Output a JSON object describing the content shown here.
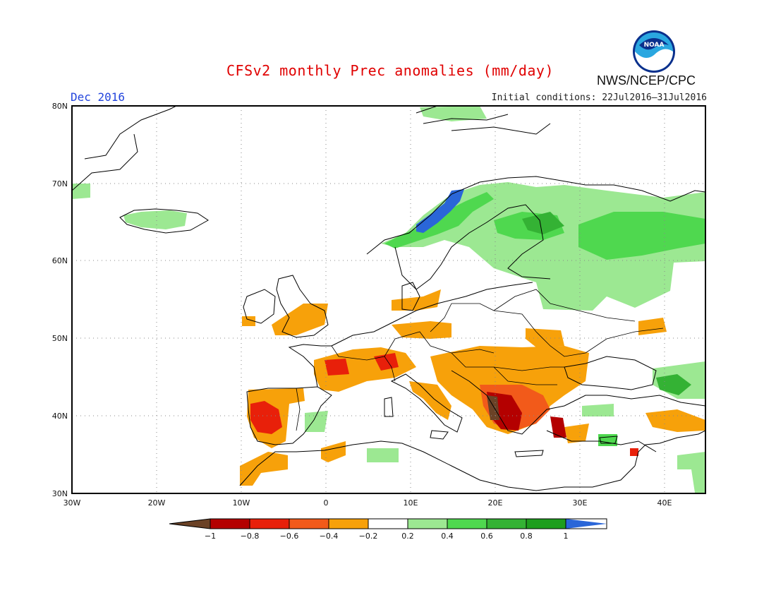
{
  "header": {
    "title": "CFSv2 monthly Prec anomalies (mm/day)",
    "month": "Dec 2016",
    "initial_conditions": "Initial conditions: 22Jul2016–31Jul2016",
    "agency": "NWS/NCEP/CPC",
    "logo_text": "NOAA"
  },
  "map": {
    "lon_range": [
      -30,
      45
    ],
    "lat_range": [
      30,
      80
    ],
    "lon_ticks": [
      "30W",
      "20W",
      "10W",
      "0",
      "10E",
      "20E",
      "30E",
      "40E"
    ],
    "lat_ticks": [
      "30N",
      "40N",
      "50N",
      "60N",
      "70N",
      "80N"
    ],
    "gridlines": "dotted"
  },
  "legend": {
    "labels": [
      "−1",
      "−0.8",
      "−0.6",
      "−0.4",
      "−0.2",
      "0.2",
      "0.4",
      "0.6",
      "0.8",
      "1"
    ],
    "colors": [
      "#6b4226",
      "#b40000",
      "#e8200a",
      "#f25a1a",
      "#f7a10a",
      "#ffffff",
      "#9ce892",
      "#4fd84f",
      "#34b234",
      "#1e9e1e",
      "#2a66d8"
    ]
  },
  "anomaly_colors": {
    "dry_1": "#f7a10a",
    "dry_2": "#f25a1a",
    "dry_3": "#e8200a",
    "dry_4": "#b40000",
    "dry_5": "#6b4226",
    "wet_1": "#9ce892",
    "wet_2": "#4fd84f",
    "wet_3": "#34b234",
    "wet_5": "#2a66d8"
  }
}
